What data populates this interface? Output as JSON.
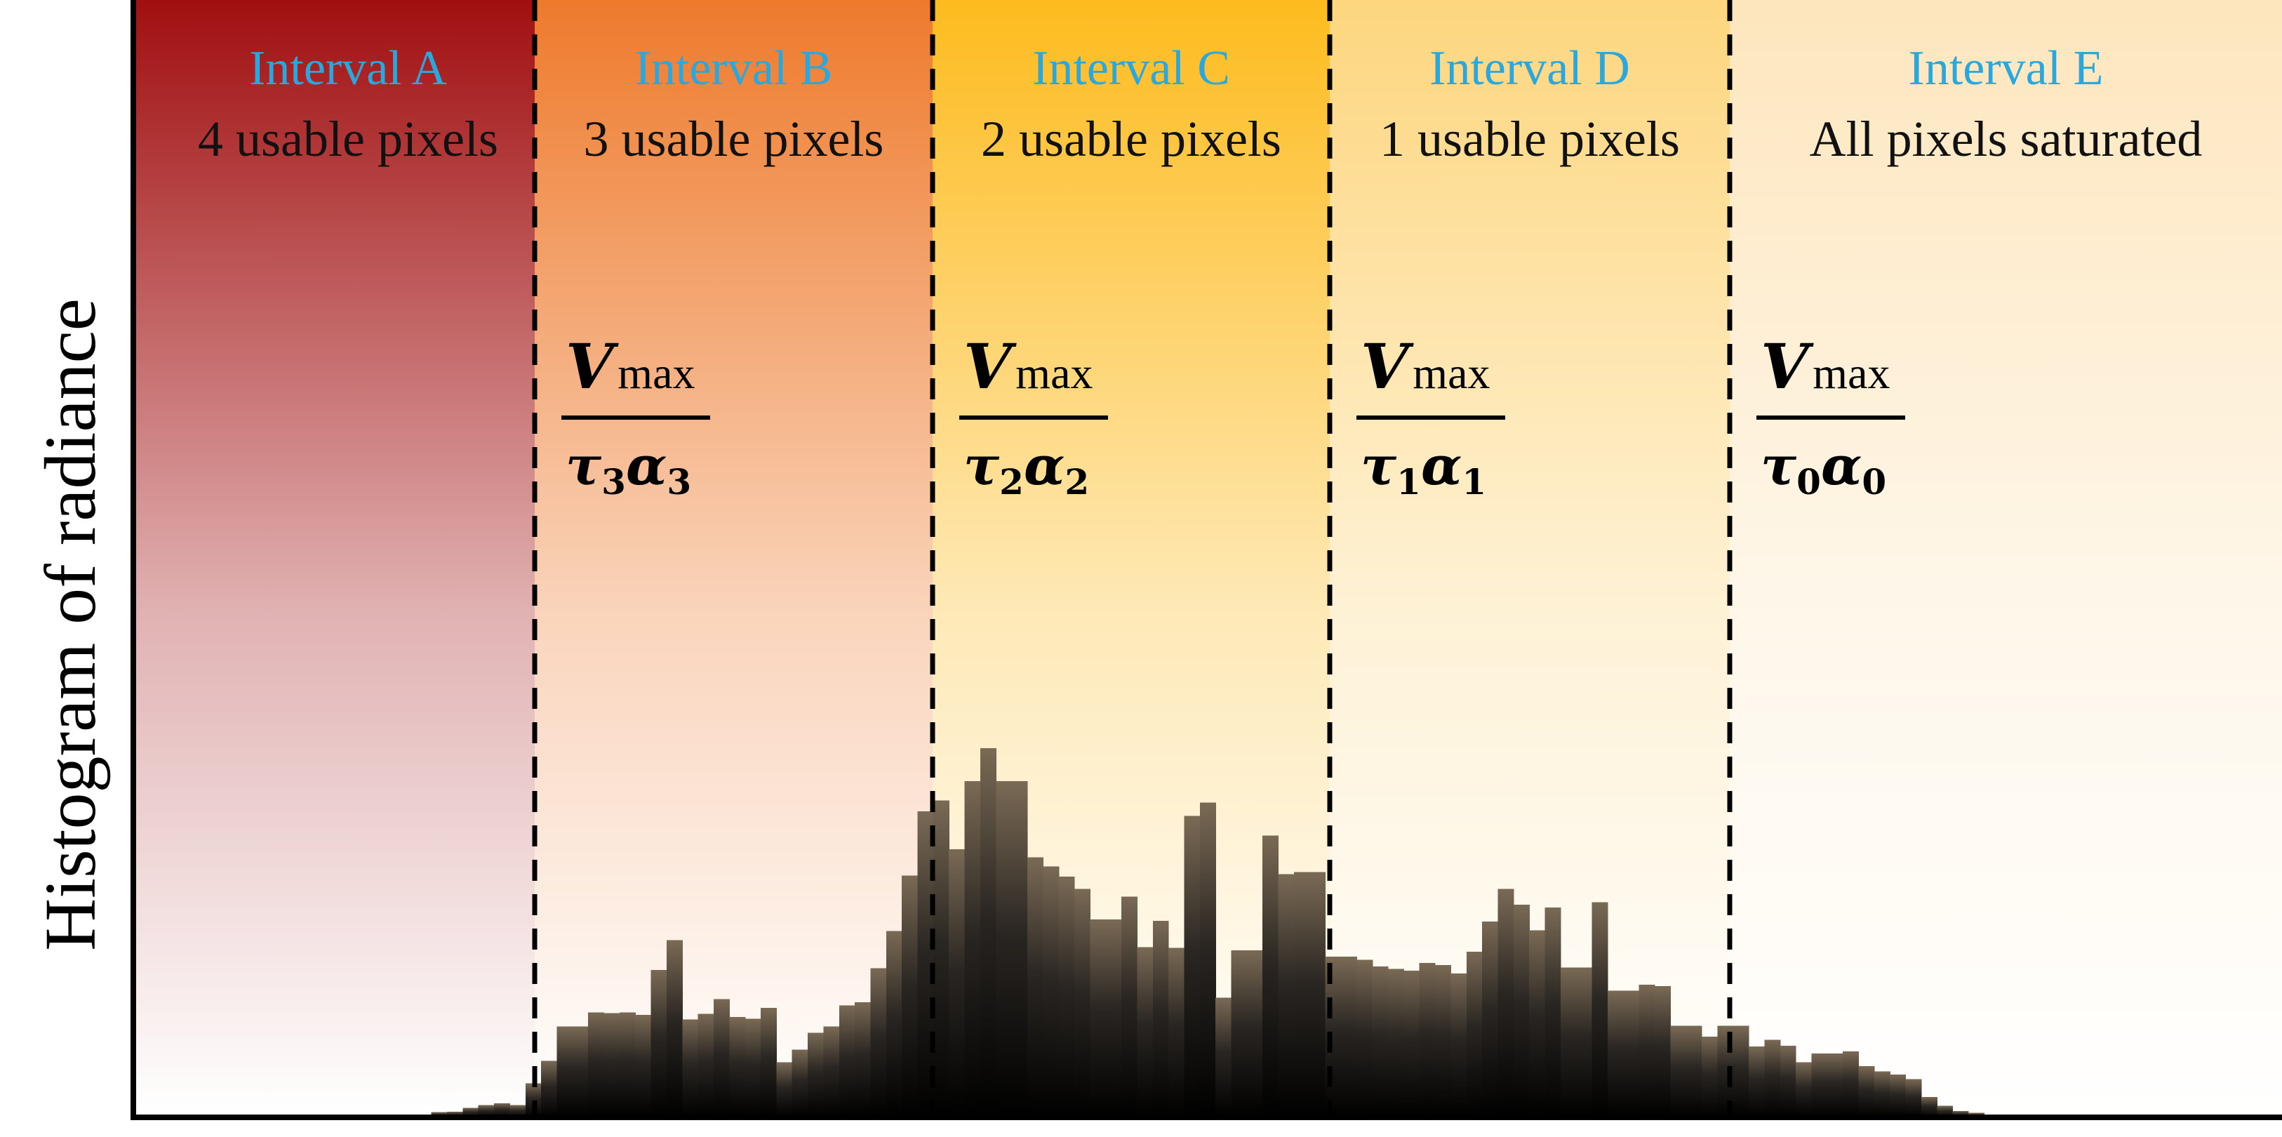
{
  "chart_data": {
    "type": "bar",
    "title": "",
    "xlabel": "",
    "ylabel": "Histogram of radiance",
    "ylim": [
      0,
      100
    ],
    "grid": false,
    "legend": "none",
    "bar_color_bottom": "#000000",
    "bar_color_top": "#7a6a55",
    "values": [
      0,
      0,
      0,
      0,
      0,
      0,
      0,
      0,
      0,
      0,
      0,
      0,
      0,
      0,
      0.2,
      0.3,
      0.3,
      0.3,
      0.4,
      0.8,
      0.9,
      1.5,
      1.9,
      2.2,
      1.9,
      5.3,
      8.8,
      14.2,
      14.2,
      16.4,
      16.3,
      16.4,
      16.0,
      23.0,
      27.7,
      15.3,
      16.2,
      18.5,
      15.7,
      15.4,
      17.1,
      8.6,
      10.6,
      13.2,
      14.2,
      17.5,
      18.0,
      23.3,
      29.1,
      37.8,
      47.8,
      49.5,
      41.9,
      52.5,
      57.7,
      52.5,
      52.5,
      40.6,
      39.2,
      37.6,
      35.7,
      30.9,
      30.9,
      34.5,
      26.6,
      30.7,
      26.5,
      47.1,
      49.2,
      18.7,
      26.1,
      26.1,
      44.0,
      38.0,
      38.3,
      38.3,
      25.1,
      25.1,
      24.6,
      23.6,
      23.2,
      22.9,
      24.1,
      23.8,
      22.5,
      25.9,
      30.6,
      35.7,
      33.2,
      29.2,
      32.8,
      23.4,
      23.4,
      33.6,
      19.8,
      19.8,
      20.7,
      20.5,
      14.3,
      14.3,
      12.6,
      14.3,
      14.3,
      11.1,
      12.1,
      11.2,
      8.6,
      10.0,
      10.0,
      10.3,
      8.0,
      7.2,
      6.7,
      6.0,
      3.2,
      1.8,
      1.0,
      0.7,
      0.4,
      0.4,
      0.2,
      0.2,
      0.1,
      0.1,
      0.1,
      0.1,
      0.1,
      0.1,
      0.1,
      0.1,
      0.1,
      0.1,
      0.1,
      0.1,
      0.1,
      0.1,
      0.1,
      0.1
    ]
  },
  "intervals": [
    {
      "title": "Interval A",
      "subtitle": "4 usable pixels",
      "color": "#a10f10"
    },
    {
      "title": "Interval B",
      "subtitle": "3 usable pixels",
      "color": "#ee7a2c",
      "threshold": {
        "numerator_symbol": "V",
        "numerator_sub": "max",
        "tau_sub": "3",
        "alpha_sub": "3"
      }
    },
    {
      "title": "Interval C",
      "subtitle": "2 usable pixels",
      "color": "#fdbb1e",
      "threshold": {
        "numerator_symbol": "V",
        "numerator_sub": "max",
        "tau_sub": "2",
        "alpha_sub": "2"
      }
    },
    {
      "title": "Interval D",
      "subtitle": "1 usable pixels",
      "color": "#fdd67e",
      "threshold": {
        "numerator_symbol": "V",
        "numerator_sub": "max",
        "tau_sub": "1",
        "alpha_sub": "1"
      }
    },
    {
      "title": "Interval E",
      "subtitle": "All pixels saturated",
      "color": "#fde6bd",
      "threshold": {
        "numerator_symbol": "V",
        "numerator_sub": "max",
        "tau_sub": "0",
        "alpha_sub": "0"
      }
    }
  ]
}
